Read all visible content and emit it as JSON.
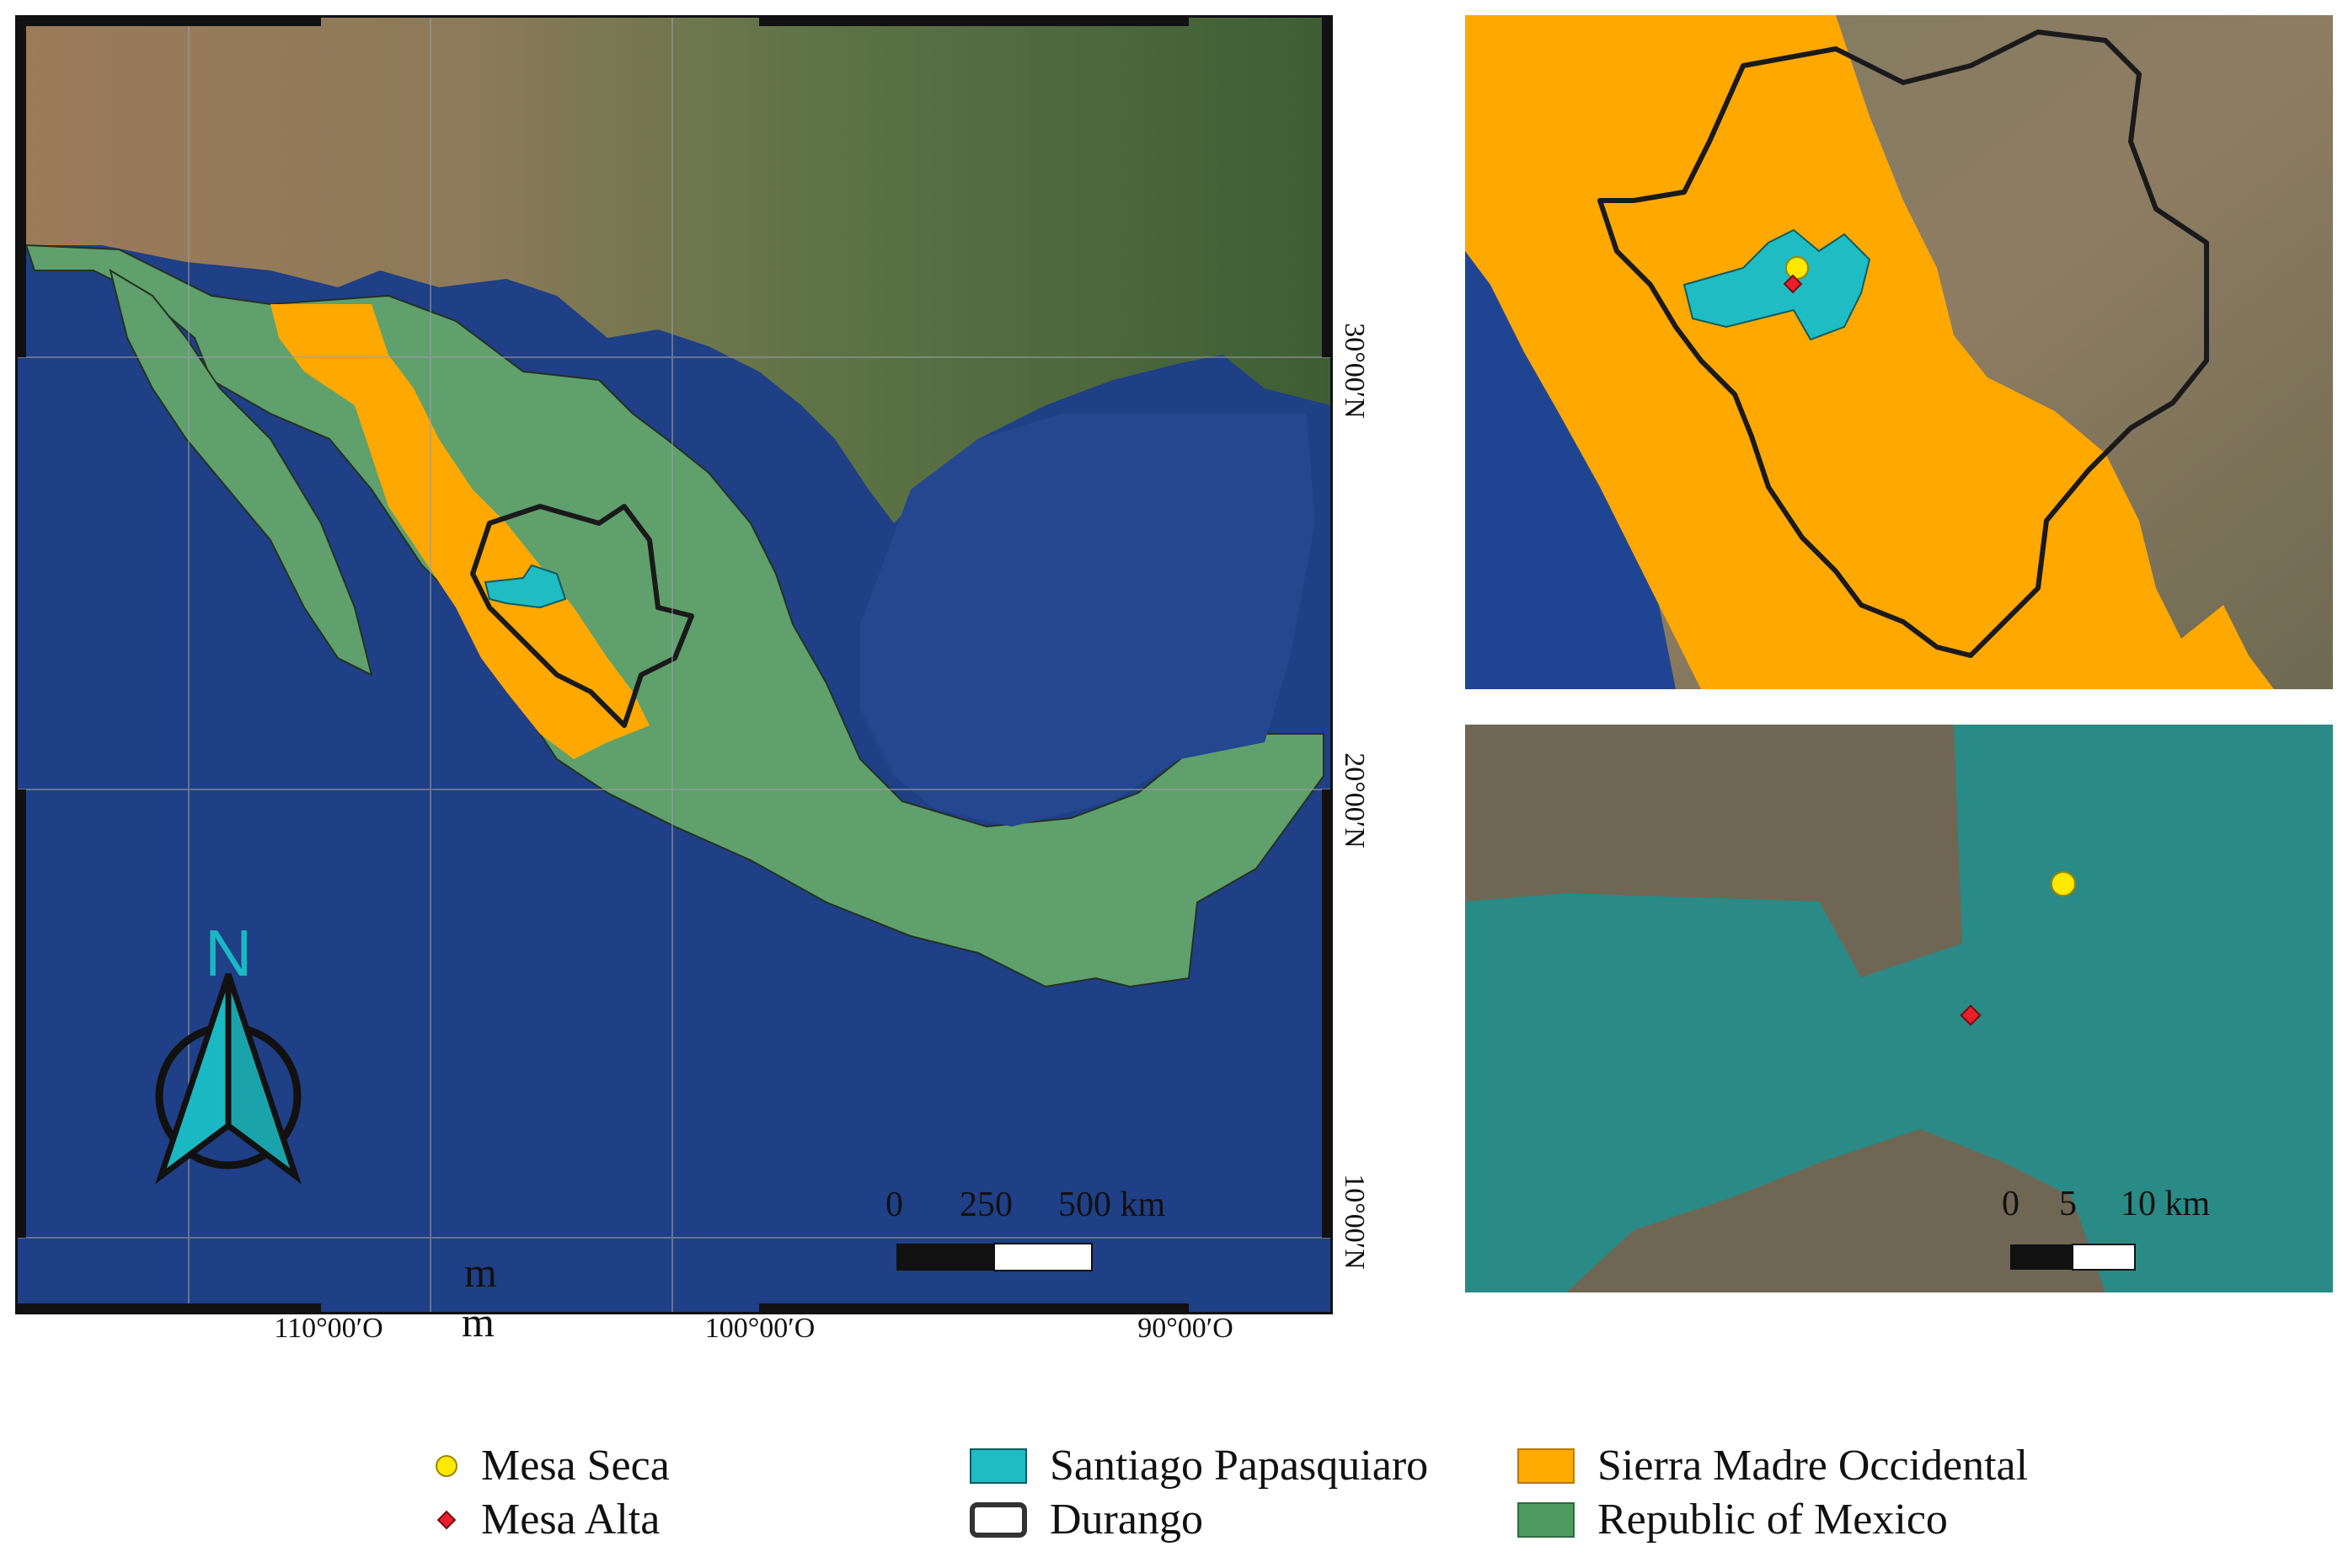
{
  "main_map": {
    "lon_labels": [
      "110°00′O",
      "100°00′O",
      "90°00′O"
    ],
    "lat_labels": [
      "30°00′N",
      "20°00′N",
      "10°00′N"
    ],
    "scale": {
      "zero": "0",
      "mid": "250",
      "end": "500 km"
    },
    "north_label": "N",
    "stray_mark_1": "m",
    "stray_mark_2": "m"
  },
  "inset_bottom": {
    "scale": {
      "zero": "0",
      "mid": "5",
      "end": "10 km"
    }
  },
  "legend": {
    "items": [
      {
        "label": "Mesa Seca",
        "symbol": "circle",
        "color": "#ffe800"
      },
      {
        "label": "Mesa Alta",
        "symbol": "diamond",
        "color": "#e8202a"
      },
      {
        "label": "Santiago Papasquiaro",
        "symbol": "rect",
        "color": "#1fbcc4"
      },
      {
        "label": "Durango",
        "symbol": "outline",
        "color": "#333333"
      },
      {
        "label": "Sierra Madre Occidental",
        "symbol": "rect",
        "color": "#ffaa00"
      },
      {
        "label": "Republic of Mexico",
        "symbol": "rect",
        "color": "#4f9a63"
      }
    ]
  },
  "colors": {
    "ocean": "#1f3f86",
    "land_us": "#6e7d4a",
    "mexico": "#5fa06c",
    "sierra": "#ffa800",
    "santiago": "#1fbcc4",
    "durango_outline": "#1a1a1a",
    "mesa_seca": "#ffe800",
    "mesa_alta": "#e8202a"
  }
}
